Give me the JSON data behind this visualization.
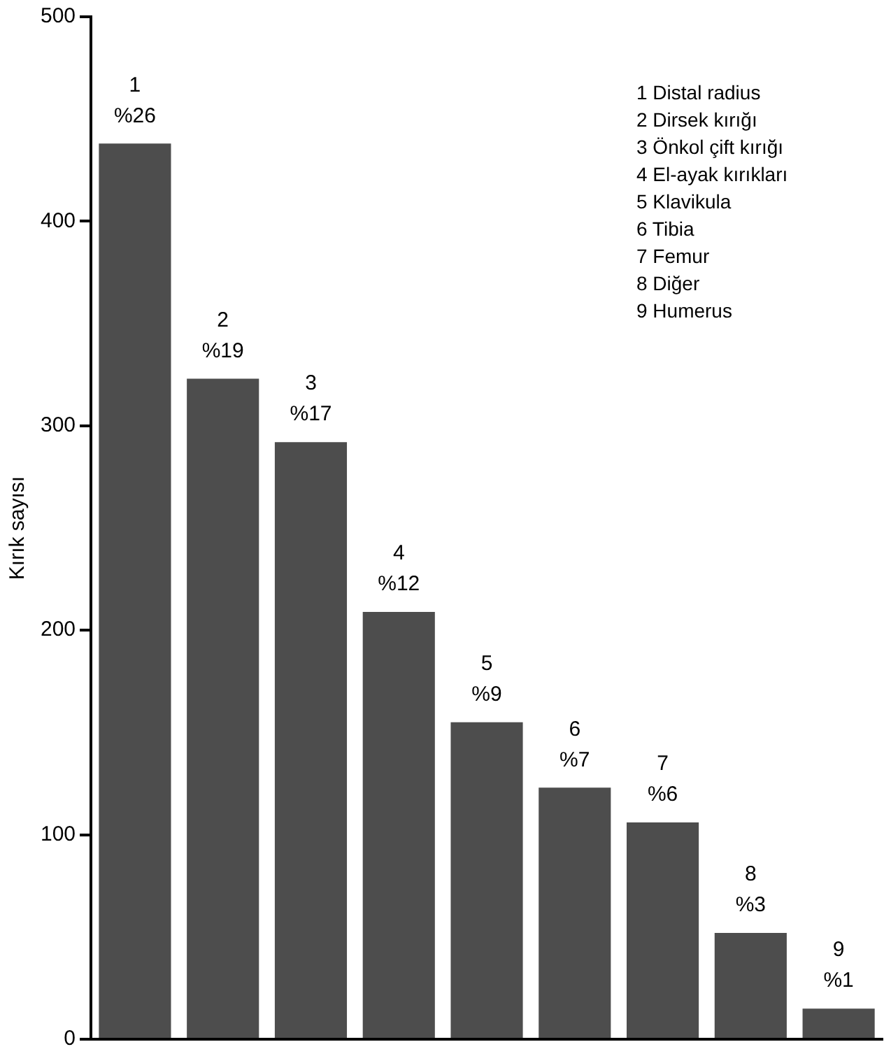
{
  "chart_data": {
    "type": "bar",
    "ylabel": "Kırık sayısı",
    "categories": [
      "1",
      "2",
      "3",
      "4",
      "5",
      "6",
      "7",
      "8",
      "9"
    ],
    "values": [
      438,
      323,
      292,
      209,
      155,
      123,
      106,
      52,
      15
    ],
    "color": "#4d4d4d",
    "ylim": [
      0,
      500
    ],
    "yticks": [
      0,
      100,
      200,
      300,
      400,
      500
    ],
    "grid": false,
    "legend": false,
    "annotations": [
      {
        "text": "%26",
        "x": "1",
        "y": 438
      },
      {
        "text": "%19",
        "x": "2",
        "y": 323
      },
      {
        "text": "%17",
        "x": "3",
        "y": 292
      },
      {
        "text": "%12",
        "x": "4",
        "y": 209
      },
      {
        "text": "%9",
        "x": "5",
        "y": 155
      },
      {
        "text": "%7",
        "x": "6",
        "y": 123
      },
      {
        "text": "%6",
        "x": "7",
        "y": 106
      },
      {
        "text": "%3",
        "x": "8",
        "y": 52
      },
      {
        "text": "%1",
        "x": "9",
        "y": 15
      },
      "1 Distal radius",
      "2 Dirsek kırığı",
      "3 Önkol çift kırığı",
      "4 El-ayak kırıkları",
      "5 Klavikula",
      "6 Tibia",
      "7 Femur",
      "8 Diğer",
      "9 Humerus"
    ]
  }
}
